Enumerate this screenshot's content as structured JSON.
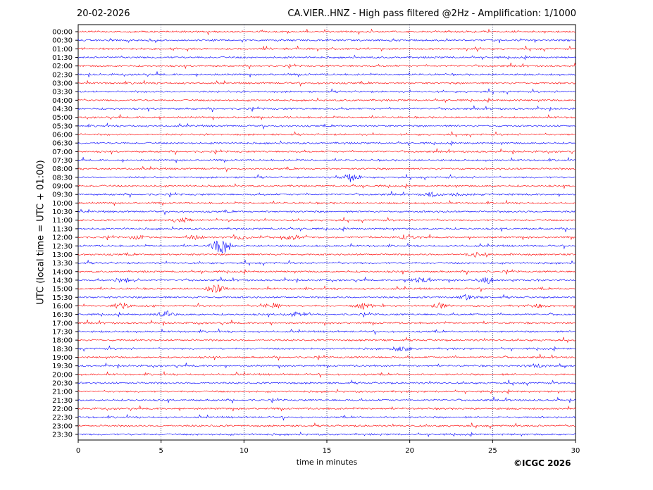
{
  "header": {
    "date": "20-02-2026",
    "title": "CA.VIER..HNZ - High pass filtered @2Hz - Amplification: 1/1000"
  },
  "footer": {
    "copyright": "©ICGC 2026"
  },
  "chart_data": {
    "type": "line",
    "title": "CA.VIER..HNZ - High pass filtered @2Hz - Amplification: 1/1000",
    "xlabel": "time in minutes",
    "ylabel": "UTC (local time = UTC + 01:00)",
    "xlim": [
      0,
      30
    ],
    "xticks": [
      0,
      5,
      10,
      15,
      20,
      25,
      30
    ],
    "grid": "vertical dotted",
    "row_colors": [
      "#ff0000",
      "#0000ff"
    ],
    "rows": [
      "00:00",
      "00:30",
      "01:00",
      "01:30",
      "02:00",
      "02:30",
      "03:00",
      "03:30",
      "04:00",
      "04:30",
      "05:00",
      "05:30",
      "06:00",
      "06:30",
      "07:00",
      "07:30",
      "08:00",
      "08:30",
      "09:00",
      "09:30",
      "10:00",
      "10:30",
      "11:00",
      "11:30",
      "12:00",
      "12:30",
      "13:00",
      "13:30",
      "14:00",
      "14:30",
      "15:00",
      "15:30",
      "16:00",
      "16:30",
      "17:00",
      "17:30",
      "18:00",
      "18:30",
      "19:00",
      "19:30",
      "20:00",
      "20:30",
      "21:00",
      "21:30",
      "22:00",
      "22:30",
      "23:00",
      "23:30"
    ],
    "events": [
      {
        "row": "08:30",
        "minute": 16.4,
        "amplitude": 0.5
      },
      {
        "row": "09:30",
        "minute": 21.4,
        "amplitude": 0.4
      },
      {
        "row": "09:30",
        "minute": 23.0,
        "amplitude": 0.2
      },
      {
        "row": "11:00",
        "minute": 6.2,
        "amplitude": 0.3
      },
      {
        "row": "12:00",
        "minute": 3.7,
        "amplitude": 0.3
      },
      {
        "row": "12:00",
        "minute": 7.0,
        "amplitude": 0.35
      },
      {
        "row": "12:00",
        "minute": 9.8,
        "amplitude": 0.3
      },
      {
        "row": "12:00",
        "minute": 12.9,
        "amplitude": 0.3
      },
      {
        "row": "12:00",
        "minute": 20.0,
        "amplitude": 0.3
      },
      {
        "row": "12:30",
        "minute": 8.6,
        "amplitude": 1.2
      },
      {
        "row": "13:00",
        "minute": 24.0,
        "amplitude": 0.3
      },
      {
        "row": "14:30",
        "minute": 2.8,
        "amplitude": 0.4
      },
      {
        "row": "14:30",
        "minute": 20.6,
        "amplitude": 0.35
      },
      {
        "row": "14:30",
        "minute": 24.6,
        "amplitude": 0.45
      },
      {
        "row": "15:00",
        "minute": 8.3,
        "amplitude": 0.6
      },
      {
        "row": "15:30",
        "minute": 23.5,
        "amplitude": 0.4
      },
      {
        "row": "16:00",
        "minute": 2.6,
        "amplitude": 0.35
      },
      {
        "row": "16:00",
        "minute": 11.7,
        "amplitude": 0.35
      },
      {
        "row": "16:00",
        "minute": 17.2,
        "amplitude": 0.4
      },
      {
        "row": "16:00",
        "minute": 21.8,
        "amplitude": 0.45
      },
      {
        "row": "16:00",
        "minute": 27.8,
        "amplitude": 0.3
      },
      {
        "row": "16:30",
        "minute": 5.2,
        "amplitude": 0.35
      },
      {
        "row": "16:30",
        "minute": 13.0,
        "amplitude": 0.3
      },
      {
        "row": "18:30",
        "minute": 19.5,
        "amplitude": 0.35
      },
      {
        "row": "19:30",
        "minute": 27.6,
        "amplitude": 0.3
      }
    ]
  }
}
